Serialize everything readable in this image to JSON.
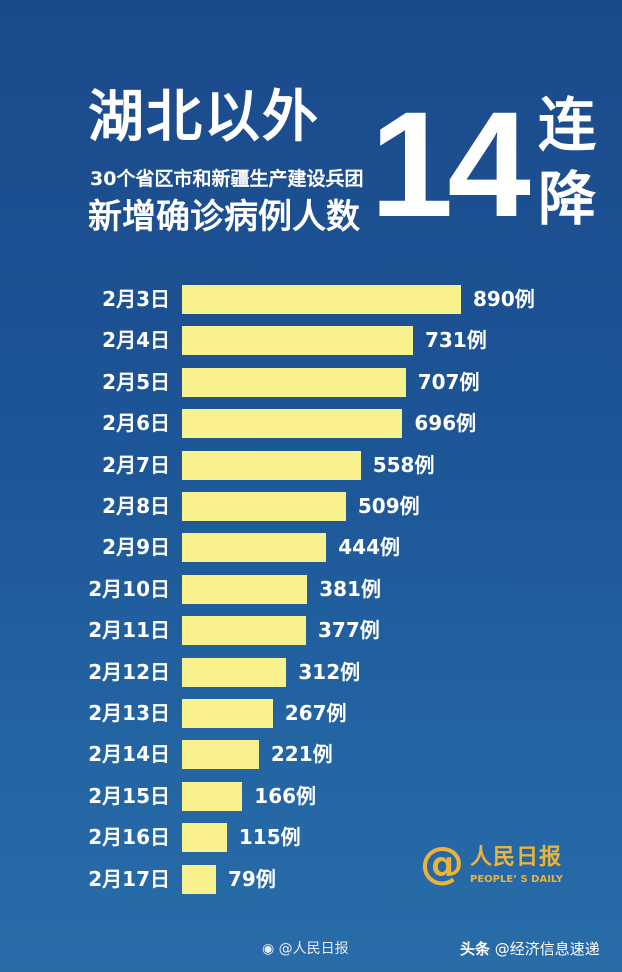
{
  "header": {
    "title": "湖北以外",
    "subtitle": "30个省区市和新疆生产建设兵团",
    "subtitle2": "新增确诊病例人数",
    "big_number": "14",
    "big_word_1": "连",
    "big_word_2": "降"
  },
  "chart_data": {
    "type": "bar",
    "orientation": "horizontal",
    "categories": [
      "2月3日",
      "2月4日",
      "2月5日",
      "2月6日",
      "2月7日",
      "2月8日",
      "2月9日",
      "2月10日",
      "2月11日",
      "2月12日",
      "2月13日",
      "2月14日",
      "2月15日",
      "2月16日",
      "2月17日"
    ],
    "values": [
      890,
      731,
      707,
      696,
      558,
      509,
      444,
      381,
      377,
      312,
      267,
      221,
      166,
      115,
      79
    ],
    "value_labels": [
      "890例",
      "731例",
      "707例",
      "696例",
      "558例",
      "509例",
      "444例",
      "381例",
      "377例",
      "312例",
      "267例",
      "221例",
      "166例",
      "115例",
      "79例"
    ],
    "bar_color": "#f9f08e",
    "grid": false
  },
  "logo": {
    "at": "@",
    "name_cn": "人民日报",
    "name_en": "PEOPLE’ S DAILY",
    "color": "#e9b33c"
  },
  "watermarks": {
    "weibo": "@人民日报",
    "toutiao_prefix": "头条",
    "toutiao_account": "@经济信息速递"
  }
}
